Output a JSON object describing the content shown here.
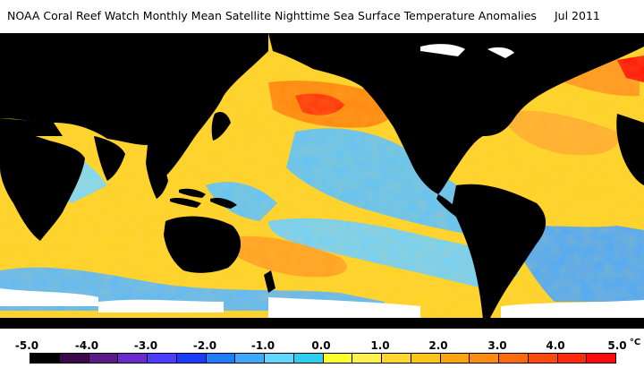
{
  "title": {
    "text": "NOAA Coral Reef Watch Monthly Mean Satellite Nighttime Sea Surface Temperature Anomalies",
    "date": "Jul 2011"
  },
  "colorbar": {
    "unit": "°C",
    "labels": [
      "-5.0",
      "-4.0",
      "-3.0",
      "-2.0",
      "-1.0",
      "0.0",
      "1.0",
      "2.0",
      "3.0",
      "4.0",
      "5.0"
    ],
    "colors": [
      "#000000",
      "#3a0a4a",
      "#5a1a8a",
      "#6a2ad0",
      "#4b3cff",
      "#1a3cff",
      "#1e7cff",
      "#3ca8ff",
      "#5ed8ff",
      "#2ad0f0",
      "#ffff2a",
      "#fff04a",
      "#ffd82a",
      "#ffc41a",
      "#ffa40a",
      "#ff8a10",
      "#ff6a0a",
      "#ff4a0a",
      "#ff2a0a",
      "#ff0a0a"
    ]
  },
  "map_colors": {
    "land": "#000000",
    "ice": "#ffffff",
    "near_zero": "#ffd82a",
    "cool": "#5ec8ff",
    "warm": "#ff8a10"
  }
}
